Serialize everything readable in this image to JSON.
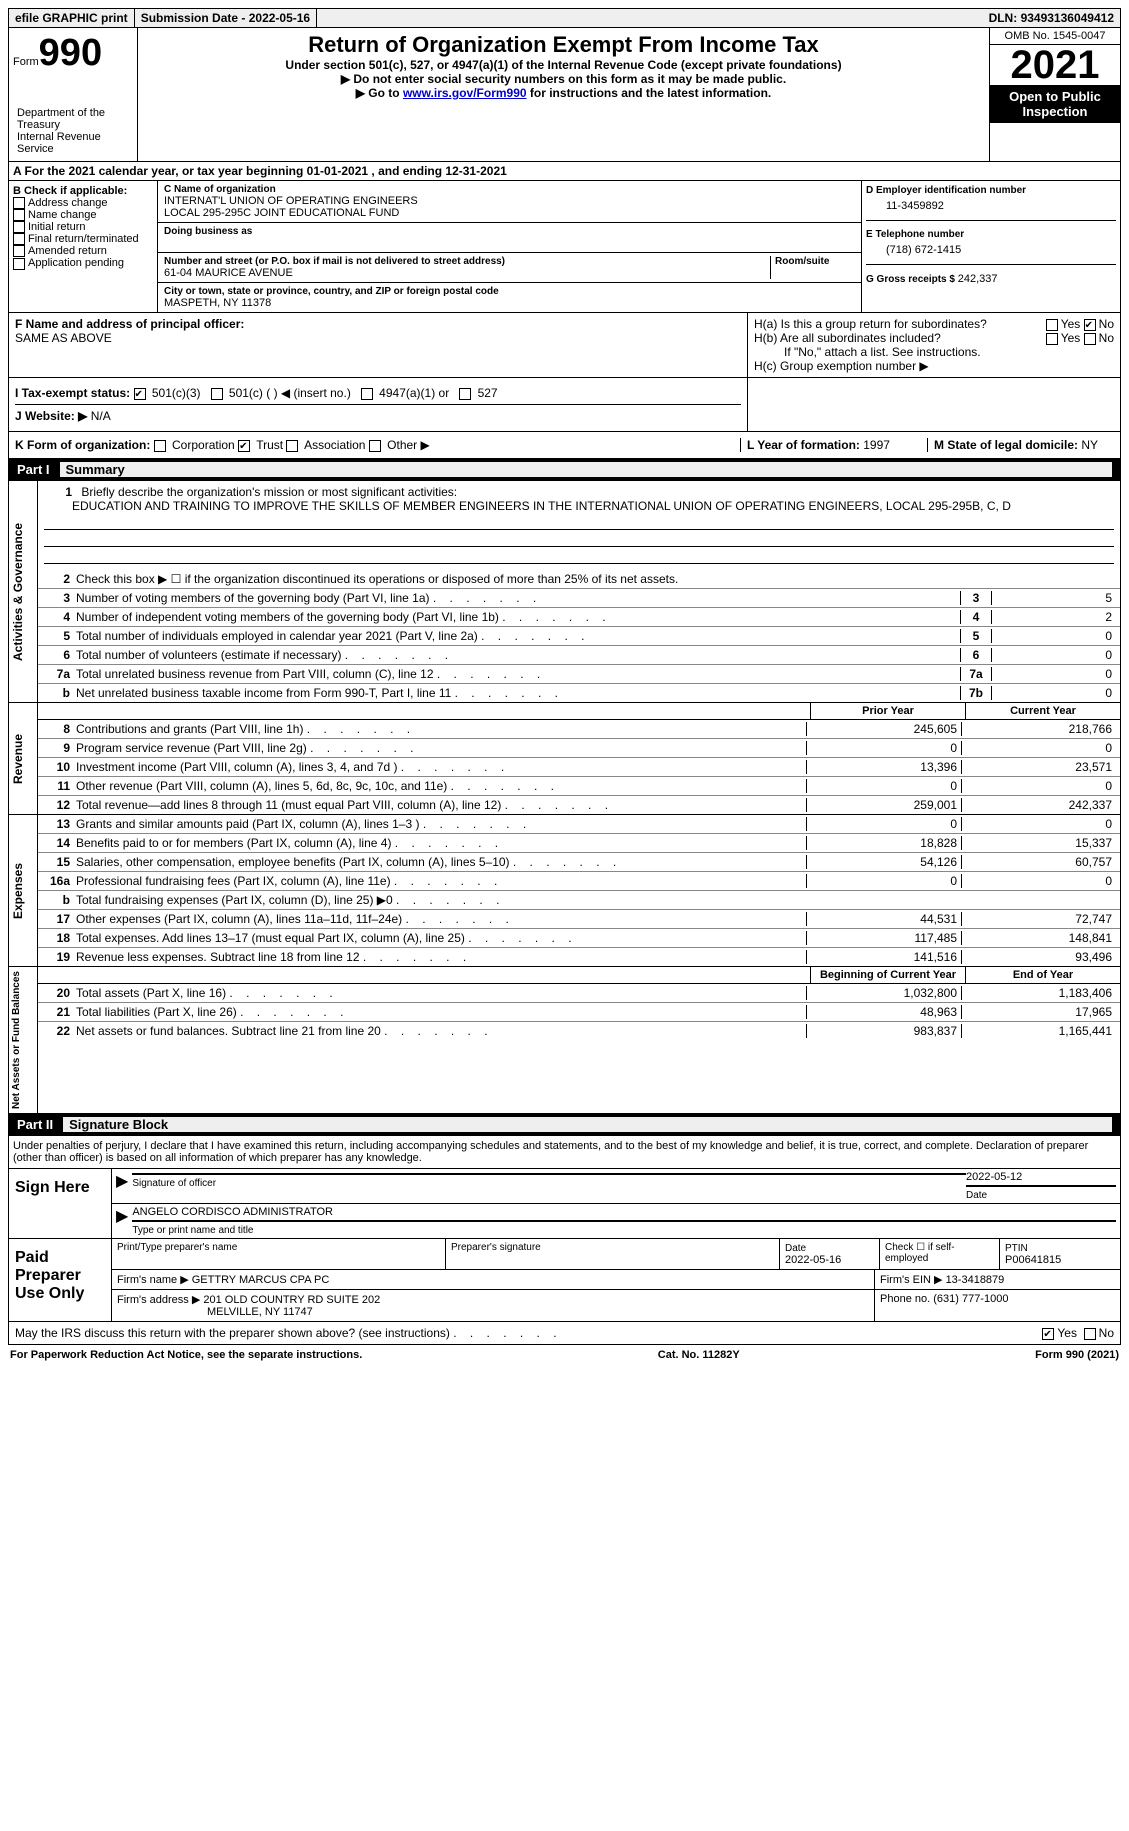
{
  "topbar": {
    "efile": "efile GRAPHIC print",
    "submission_label": "Submission Date - ",
    "submission_date": "2022-05-16",
    "dln_label": "DLN: ",
    "dln": "93493136049412"
  },
  "header": {
    "form_word": "Form",
    "form_num": "990",
    "title": "Return of Organization Exempt From Income Tax",
    "subtitle": "Under section 501(c), 527, or 4947(a)(1) of the Internal Revenue Code (except private foundations)",
    "note1": "▶ Do not enter social security numbers on this form as it may be made public.",
    "note2_pre": "▶ Go to ",
    "note2_link": "www.irs.gov/Form990",
    "note2_post": " for instructions and the latest information.",
    "dept": "Department of the Treasury\nInternal Revenue Service",
    "omb": "OMB No. 1545-0047",
    "year": "2021",
    "open": "Open to Public Inspection"
  },
  "row_a": {
    "text_pre": "A For the 2021 calendar year, or tax year beginning ",
    "begin": "01-01-2021",
    "mid": "   , and ending ",
    "end": "12-31-2021"
  },
  "col_b": {
    "header": "B Check if applicable:",
    "opt1": "Address change",
    "opt2": "Name change",
    "opt3": "Initial return",
    "opt4": "Final return/terminated",
    "opt5": "Amended return",
    "opt6": "Application pending"
  },
  "col_c": {
    "name_label": "C Name of organization",
    "name1": "INTERNAT'L UNION OF OPERATING ENGINEERS",
    "name2": "LOCAL 295-295C JOINT EDUCATIONAL FUND",
    "dba_label": "Doing business as",
    "addr_label": "Number and street (or P.O. box if mail is not delivered to street address)",
    "room_label": "Room/suite",
    "addr": "61-04 MAURICE AVENUE",
    "city_label": "City or town, state or province, country, and ZIP or foreign postal code",
    "city": "MASPETH, NY  11378"
  },
  "col_d": {
    "ein_label": "D Employer identification number",
    "ein": "11-3459892",
    "phone_label": "E Telephone number",
    "phone": "(718) 672-1415",
    "gross_label": "G Gross receipts $ ",
    "gross": "242,337"
  },
  "fg": {
    "f": "F Name and address of principal officer:",
    "f_val": "SAME AS ABOVE",
    "h_a": "H(a)  Is this a group return for subordinates?",
    "h_b": "H(b)  Are all subordinates included?",
    "h_note": "If \"No,\" attach a list. See instructions.",
    "h_c": "H(c)  Group exemption number ▶",
    "yes": "Yes",
    "no": "No"
  },
  "row_i": {
    "i_label": "I   Tax-exempt status:",
    "opt1": "501(c)(3)",
    "opt2": "501(c) (  ) ◀ (insert no.)",
    "opt3": "4947(a)(1) or",
    "opt4": "527",
    "j_label": "J   Website: ▶",
    "j_val": "N/A"
  },
  "row_k": {
    "k_label": "K Form of organization:",
    "corp": "Corporation",
    "trust": "Trust",
    "assoc": "Association",
    "other": "Other ▶",
    "l_label": "L Year of formation: ",
    "l_val": "1997",
    "m_label": "M State of legal domicile: ",
    "m_val": "NY"
  },
  "part1": {
    "label": "Part I",
    "title": "Summary"
  },
  "mission": {
    "num": "1",
    "label": "Briefly describe the organization's mission or most significant activities:",
    "text": "EDUCATION AND TRAINING TO IMPROVE THE SKILLS OF MEMBER ENGINEERS IN THE INTERNATIONAL UNION OF OPERATING ENGINEERS, LOCAL 295-295B, C, D"
  },
  "side_labels": {
    "ag": "Activities & Governance",
    "rev": "Revenue",
    "exp": "Expenses",
    "net": "Net Assets or Fund Balances"
  },
  "lines_top": [
    {
      "n": "2",
      "t": "Check this box ▶ ☐ if the organization discontinued its operations or disposed of more than 25% of its net assets."
    },
    {
      "n": "3",
      "t": "Number of voting members of the governing body (Part VI, line 1a)",
      "b": "3",
      "v": "5"
    },
    {
      "n": "4",
      "t": "Number of independent voting members of the governing body (Part VI, line 1b)",
      "b": "4",
      "v": "2"
    },
    {
      "n": "5",
      "t": "Total number of individuals employed in calendar year 2021 (Part V, line 2a)",
      "b": "5",
      "v": "0"
    },
    {
      "n": "6",
      "t": "Total number of volunteers (estimate if necessary)",
      "b": "6",
      "v": "0"
    },
    {
      "n": "7a",
      "t": "Total unrelated business revenue from Part VIII, column (C), line 12",
      "b": "7a",
      "v": "0"
    },
    {
      "n": "b",
      "t": "Net unrelated business taxable income from Form 990-T, Part I, line 11",
      "b": "7b",
      "v": "0"
    }
  ],
  "yr_header": {
    "prior": "Prior Year",
    "current": "Current Year"
  },
  "lines_rev": [
    {
      "n": "8",
      "t": "Contributions and grants (Part VIII, line 1h)",
      "p": "245,605",
      "c": "218,766"
    },
    {
      "n": "9",
      "t": "Program service revenue (Part VIII, line 2g)",
      "p": "0",
      "c": "0"
    },
    {
      "n": "10",
      "t": "Investment income (Part VIII, column (A), lines 3, 4, and 7d )",
      "p": "13,396",
      "c": "23,571"
    },
    {
      "n": "11",
      "t": "Other revenue (Part VIII, column (A), lines 5, 6d, 8c, 9c, 10c, and 11e)",
      "p": "0",
      "c": "0"
    },
    {
      "n": "12",
      "t": "Total revenue—add lines 8 through 11 (must equal Part VIII, column (A), line 12)",
      "p": "259,001",
      "c": "242,337"
    }
  ],
  "lines_exp": [
    {
      "n": "13",
      "t": "Grants and similar amounts paid (Part IX, column (A), lines 1–3 )",
      "p": "0",
      "c": "0"
    },
    {
      "n": "14",
      "t": "Benefits paid to or for members (Part IX, column (A), line 4)",
      "p": "18,828",
      "c": "15,337"
    },
    {
      "n": "15",
      "t": "Salaries, other compensation, employee benefits (Part IX, column (A), lines 5–10)",
      "p": "54,126",
      "c": "60,757"
    },
    {
      "n": "16a",
      "t": "Professional fundraising fees (Part IX, column (A), line 11e)",
      "p": "0",
      "c": "0"
    },
    {
      "n": "b",
      "t": "Total fundraising expenses (Part IX, column (D), line 25) ▶0",
      "p": "",
      "c": "",
      "shaded": true
    },
    {
      "n": "17",
      "t": "Other expenses (Part IX, column (A), lines 11a–11d, 11f–24e)",
      "p": "44,531",
      "c": "72,747"
    },
    {
      "n": "18",
      "t": "Total expenses. Add lines 13–17 (must equal Part IX, column (A), line 25)",
      "p": "117,485",
      "c": "148,841"
    },
    {
      "n": "19",
      "t": "Revenue less expenses. Subtract line 18 from line 12",
      "p": "141,516",
      "c": "93,496"
    }
  ],
  "yr_header2": {
    "prior": "Beginning of Current Year",
    "current": "End of Year"
  },
  "lines_net": [
    {
      "n": "20",
      "t": "Total assets (Part X, line 16)",
      "p": "1,032,800",
      "c": "1,183,406"
    },
    {
      "n": "21",
      "t": "Total liabilities (Part X, line 26)",
      "p": "48,963",
      "c": "17,965"
    },
    {
      "n": "22",
      "t": "Net assets or fund balances. Subtract line 21 from line 20",
      "p": "983,837",
      "c": "1,165,441"
    }
  ],
  "part2": {
    "label": "Part II",
    "title": "Signature Block"
  },
  "declaration": "Under penalties of perjury, I declare that I have examined this return, including accompanying schedules and statements, and to the best of my knowledge and belief, it is true, correct, and complete. Declaration of preparer (other than officer) is based on all information of which preparer has any knowledge.",
  "sign": {
    "here": "Sign Here",
    "sig_label": "Signature of officer",
    "date": "2022-05-12",
    "date_label": "Date",
    "name": "ANGELO CORDISCO  ADMINISTRATOR",
    "name_label": "Type or print name and title"
  },
  "prep": {
    "label": "Paid Preparer Use Only",
    "print_label": "Print/Type preparer's name",
    "sig_label": "Preparer's signature",
    "date_label": "Date",
    "date": "2022-05-16",
    "check_label": "Check ☐ if self-employed",
    "ptin_label": "PTIN",
    "ptin": "P00641815",
    "firm_label": "Firm's name    ▶ ",
    "firm": "GETTRY MARCUS CPA PC",
    "ein_label": "Firm's EIN ▶ ",
    "ein": "13-3418879",
    "addr_label": "Firm's address ▶ ",
    "addr1": "201 OLD COUNTRY RD SUITE 202",
    "addr2": "MELVILLE, NY  11747",
    "phone_label": "Phone no. ",
    "phone": "(631) 777-1000"
  },
  "discuss": {
    "text": "May the IRS discuss this return with the preparer shown above? (see instructions)",
    "yes": "Yes",
    "no": "No"
  },
  "footer": {
    "left": "For Paperwork Reduction Act Notice, see the separate instructions.",
    "mid": "Cat. No. 11282Y",
    "right": "Form 990 (2021)"
  }
}
